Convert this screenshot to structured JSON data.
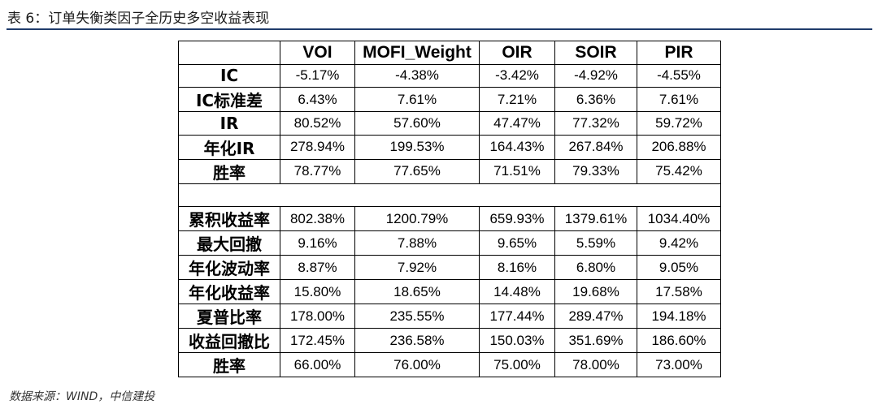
{
  "caption": "表 6：订单失衡类因子全历史多空收益表现",
  "table": {
    "headers": [
      "",
      "VOI",
      "MOFI_Weight",
      "OIR",
      "SOIR",
      "PIR"
    ],
    "rows": [
      {
        "label": "IC",
        "values": [
          "-5.17%",
          "-4.38%",
          "-3.42%",
          "-4.92%",
          "-4.55%"
        ]
      },
      {
        "label": "IC标准差",
        "values": [
          "6.43%",
          "7.61%",
          "7.21%",
          "6.36%",
          "7.61%"
        ]
      },
      {
        "label": "IR",
        "values": [
          "80.52%",
          "57.60%",
          "47.47%",
          "77.32%",
          "59.72%"
        ]
      },
      {
        "label": "年化IR",
        "values": [
          "278.94%",
          "199.53%",
          "164.43%",
          "267.84%",
          "206.88%"
        ]
      },
      {
        "label": "胜率",
        "values": [
          "78.77%",
          "77.65%",
          "71.51%",
          "79.33%",
          "75.42%"
        ]
      },
      {
        "label": "",
        "values": [
          "",
          "",
          "",
          "",
          ""
        ]
      },
      {
        "label": "累积收益率",
        "values": [
          "802.38%",
          "1200.79%",
          "659.93%",
          "1379.61%",
          "1034.40%"
        ]
      },
      {
        "label": "最大回撤",
        "values": [
          "9.16%",
          "7.88%",
          "9.65%",
          "5.59%",
          "9.42%"
        ]
      },
      {
        "label": "年化波动率",
        "values": [
          "8.87%",
          "7.92%",
          "8.16%",
          "6.80%",
          "9.05%"
        ]
      },
      {
        "label": "年化收益率",
        "values": [
          "15.80%",
          "18.65%",
          "14.48%",
          "19.68%",
          "17.58%"
        ]
      },
      {
        "label": "夏普比率",
        "values": [
          "178.00%",
          "235.55%",
          "177.44%",
          "289.47%",
          "194.18%"
        ]
      },
      {
        "label": "收益回撤比",
        "values": [
          "172.45%",
          "236.58%",
          "150.03%",
          "351.69%",
          "186.60%"
        ]
      },
      {
        "label": "胜率",
        "values": [
          "66.00%",
          "76.00%",
          "75.00%",
          "78.00%",
          "73.00%"
        ]
      }
    ]
  },
  "source": "数据来源：WIND，中信建投"
}
